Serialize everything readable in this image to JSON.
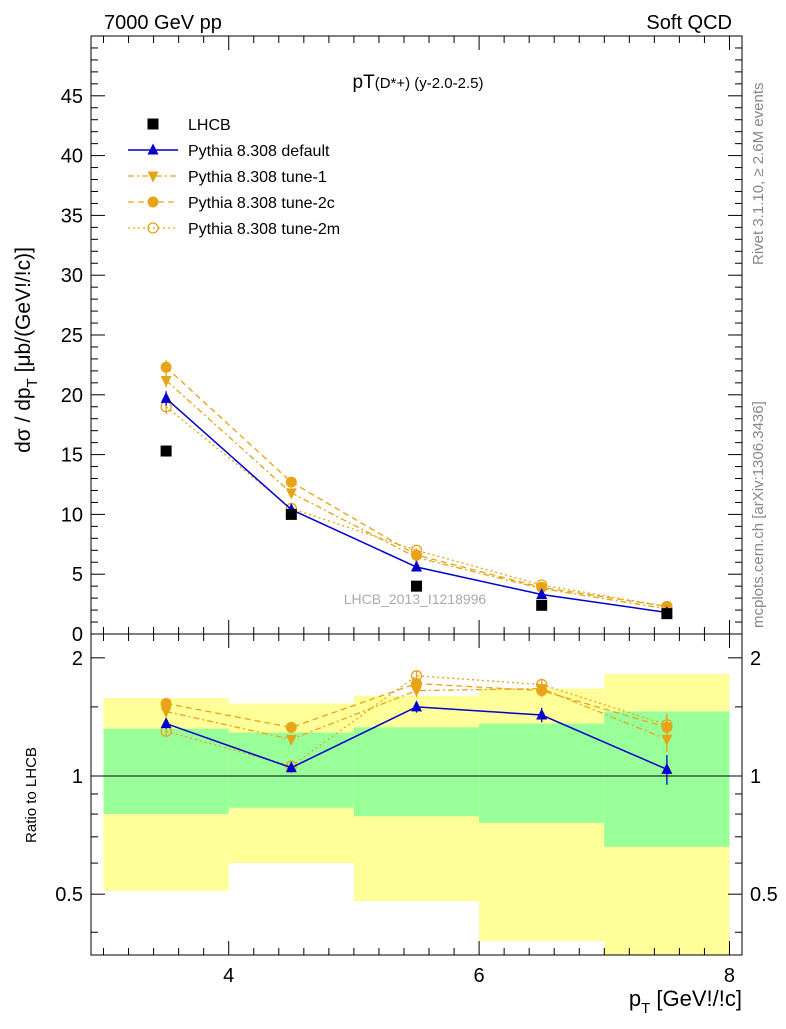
{
  "header": {
    "energy_label": "7000 GeV pp",
    "process_label": "Soft QCD"
  },
  "side": {
    "rivet_label": "Rivet 3.1.10, ≥ 2.6M events",
    "mcplots_label": "mcplots.cern.ch [arXiv:1306.3436]"
  },
  "chart_data": [
    {
      "type": "scatter",
      "title": "pT(D*+) (y-2.0-2.5)",
      "title_main": "pT",
      "title_sub": "(D*+) (y-2.0-2.5)",
      "ylabel": "dσ / dp_T [μb/(GeV!/!c)]",
      "ylabel_main": "dσ / dp",
      "ylabel_sub": "T",
      "ylabel_unit": " [μb/(GeV!/!c)]",
      "xlim": [
        2.9,
        8.1
      ],
      "ylim": [
        0,
        50
      ],
      "yticks": [
        0,
        5,
        10,
        15,
        20,
        25,
        30,
        35,
        40,
        45
      ],
      "grid": false,
      "legend_position": "top-left",
      "watermark": "LHCB_2013_I1218996",
      "x": [
        3.5,
        4.5,
        5.5,
        6.5,
        7.5
      ],
      "series": [
        {
          "name": "LHCB",
          "color": "#000000",
          "values": [
            15.3,
            10.0,
            4.0,
            2.4,
            1.7
          ],
          "marker": "square",
          "dash": "none"
        },
        {
          "name": "Pythia 8.308 default",
          "color": "#0000cc",
          "values": [
            19.7,
            10.4,
            5.6,
            3.3,
            1.8
          ],
          "err": [
            0.6,
            0.2,
            0.15,
            0.1,
            0.1
          ],
          "marker": "triangle-up",
          "dash": "solid"
        },
        {
          "name": "Pythia 8.308 tune-1",
          "color": "#e8a317",
          "values": [
            21.2,
            11.8,
            6.4,
            3.8,
            2.1
          ],
          "err": [
            0.6,
            0.25,
            0.15,
            0.1,
            0.1
          ],
          "marker": "triangle-down",
          "dash": "dashdot"
        },
        {
          "name": "Pythia 8.308 tune-2c",
          "color": "#e8a317",
          "values": [
            22.3,
            12.7,
            6.6,
            3.9,
            2.3
          ],
          "err": [
            0.6,
            0.25,
            0.15,
            0.1,
            0.1
          ],
          "marker": "circle",
          "dash": "dashed"
        },
        {
          "name": "Pythia 8.308 tune-2m",
          "color": "#e8a317",
          "values": [
            19.0,
            10.5,
            7.0,
            4.1,
            2.3
          ],
          "err": [
            0.6,
            0.2,
            0.15,
            0.1,
            0.1
          ],
          "marker": "circle-open",
          "dash": "dotted"
        }
      ]
    },
    {
      "type": "scatter",
      "ylabel": "Ratio to LHCB",
      "xlabel": "p_T [GeV!/!c]",
      "xlabel_main": "p",
      "xlabel_sub": "T",
      "xlabel_unit": " [GeV!/!c]",
      "xlim": [
        2.9,
        8.1
      ],
      "ylim": [
        0.35,
        2.3
      ],
      "yticks": [
        0.5,
        1,
        2
      ],
      "xticks": [
        4,
        6,
        8
      ],
      "reference_line": 1,
      "bins": [
        {
          "lo": 3,
          "hi": 4,
          "inner": [
            0.8,
            1.32
          ],
          "outer": [
            0.51,
            1.58
          ]
        },
        {
          "lo": 4,
          "hi": 5,
          "inner": [
            0.83,
            1.29
          ],
          "outer": [
            0.6,
            1.53
          ]
        },
        {
          "lo": 5,
          "hi": 6,
          "inner": [
            0.79,
            1.33
          ],
          "outer": [
            0.48,
            1.6
          ]
        },
        {
          "lo": 6,
          "hi": 7,
          "inner": [
            0.76,
            1.36
          ],
          "outer": [
            0.38,
            1.67
          ]
        },
        {
          "lo": 7,
          "hi": 8,
          "inner": [
            0.66,
            1.46
          ],
          "outer": [
            0.35,
            1.82
          ]
        }
      ],
      "x": [
        3.5,
        4.5,
        5.5,
        6.5,
        7.5
      ],
      "series": [
        {
          "name": "Pythia 8.308 default",
          "color": "#0000cc",
          "values": [
            1.36,
            1.05,
            1.5,
            1.43,
            1.04
          ],
          "err": [
            0.04,
            0.03,
            0.05,
            0.06,
            0.09
          ],
          "marker": "triangle-up",
          "dash": "solid"
        },
        {
          "name": "Pythia 8.308 tune-1",
          "color": "#e8a317",
          "values": [
            1.46,
            1.24,
            1.65,
            1.67,
            1.24
          ],
          "err": [
            0.04,
            0.03,
            0.05,
            0.06,
            0.09
          ],
          "marker": "triangle-down",
          "dash": "dashdot"
        },
        {
          "name": "Pythia 8.308 tune-2c",
          "color": "#e8a317",
          "values": [
            1.53,
            1.33,
            1.72,
            1.65,
            1.33
          ],
          "err": [
            0.04,
            0.03,
            0.05,
            0.06,
            0.09
          ],
          "marker": "circle",
          "dash": "dashed"
        },
        {
          "name": "Pythia 8.308 tune-2m",
          "color": "#e8a317",
          "values": [
            1.3,
            1.06,
            1.8,
            1.71,
            1.35
          ],
          "err": [
            0.04,
            0.03,
            0.05,
            0.06,
            0.09
          ],
          "marker": "circle-open",
          "dash": "dotted"
        }
      ]
    }
  ]
}
